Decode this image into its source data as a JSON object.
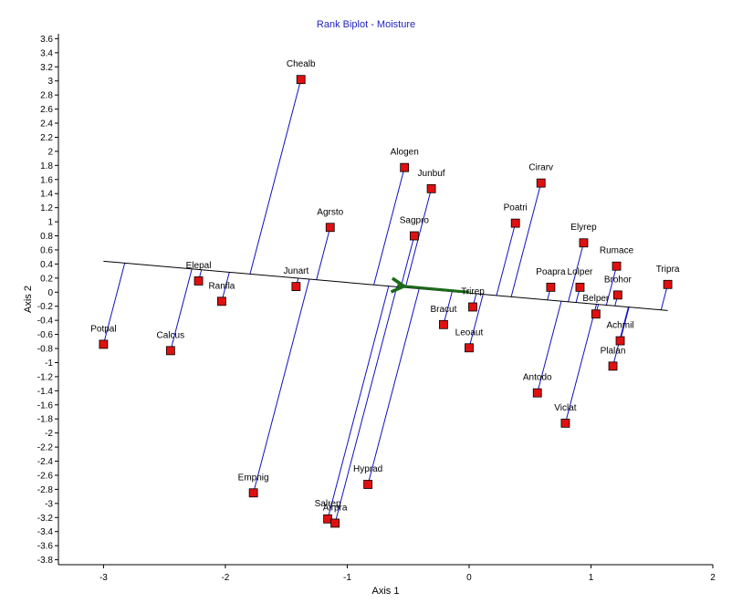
{
  "chart_data": {
    "type": "scatter",
    "title": "Rank Biplot - Moisture",
    "xlabel": "Axis 1",
    "ylabel": "Axis 2",
    "xlim": [
      -3.37,
      2.0
    ],
    "ylim": [
      -3.87,
      3.67
    ],
    "x_ticks": [
      -3,
      -2,
      -1,
      0,
      1,
      2
    ],
    "y_ticks": [
      3.6,
      3.4,
      3.2,
      3,
      2.8,
      2.6,
      2.4,
      2.2,
      2,
      1.8,
      1.6,
      1.4,
      1.2,
      1,
      0.8,
      0.6,
      0.4,
      0.2,
      0,
      -0.2,
      -0.4,
      -0.6,
      -0.8,
      -1,
      -1.2,
      -1.4,
      -1.6,
      -1.8,
      -2,
      -2.2,
      -2.4,
      -2.6,
      -2.8,
      -3,
      -3.2,
      -3.4,
      -3.6,
      -3.8
    ],
    "grid": false,
    "marker_color": "#e01010",
    "projection_color": "#1010c0",
    "arrow_color": "#1a6a1a",
    "biplot_axis": {
      "from": [
        -3.0,
        0.44
      ],
      "to": [
        1.63,
        -0.26
      ]
    },
    "arrow": {
      "from": [
        0.0,
        0.0
      ],
      "to": [
        -0.65,
        0.1
      ]
    },
    "points": [
      {
        "label": "Chealb",
        "x": -1.38,
        "y": 3.02
      },
      {
        "label": "Alogen",
        "x": -0.53,
        "y": 1.77
      },
      {
        "label": "Junbuf",
        "x": -0.31,
        "y": 1.47
      },
      {
        "label": "Cirarv",
        "x": 0.59,
        "y": 1.55
      },
      {
        "label": "Poatri",
        "x": 0.38,
        "y": 0.98
      },
      {
        "label": "Agrsto",
        "x": -1.14,
        "y": 0.92
      },
      {
        "label": "Sagpro",
        "x": -0.45,
        "y": 0.8
      },
      {
        "label": "Elyrep",
        "x": 0.94,
        "y": 0.7
      },
      {
        "label": "Rumace",
        "x": 1.21,
        "y": 0.37
      },
      {
        "label": "Tripra",
        "x": 1.63,
        "y": 0.11
      },
      {
        "label": "Elepal",
        "x": -2.22,
        "y": 0.16
      },
      {
        "label": "Ranfla",
        "x": -2.03,
        "y": -0.13
      },
      {
        "label": "Junart",
        "x": -1.42,
        "y": 0.08
      },
      {
        "label": "Poapra",
        "x": 0.67,
        "y": 0.07
      },
      {
        "label": "Lolper",
        "x": 0.91,
        "y": 0.07
      },
      {
        "label": "Brohor",
        "x": 1.22,
        "y": -0.04
      },
      {
        "label": "Trirep",
        "x": 0.03,
        "y": -0.21
      },
      {
        "label": "Belper",
        "x": 1.04,
        "y": -0.31
      },
      {
        "label": "Bracut",
        "x": -0.21,
        "y": -0.46
      },
      {
        "label": "Achmil",
        "x": 1.24,
        "y": -0.69
      },
      {
        "label": "Potpal",
        "x": -3.0,
        "y": -0.74
      },
      {
        "label": "Calcus",
        "x": -2.45,
        "y": -0.83
      },
      {
        "label": "Leoaut",
        "x": 0.0,
        "y": -0.79
      },
      {
        "label": "Plalan",
        "x": 1.18,
        "y": -1.05
      },
      {
        "label": "Antodo",
        "x": 0.56,
        "y": -1.43
      },
      {
        "label": "Viclat",
        "x": 0.79,
        "y": -1.86
      },
      {
        "label": "Hyprad",
        "x": -0.83,
        "y": -2.73
      },
      {
        "label": "Empnig",
        "x": -1.77,
        "y": -2.85
      },
      {
        "label": "Salrep",
        "x": -1.16,
        "y": -3.22
      },
      {
        "label": "Airpra",
        "x": -1.1,
        "y": -3.28
      }
    ]
  }
}
